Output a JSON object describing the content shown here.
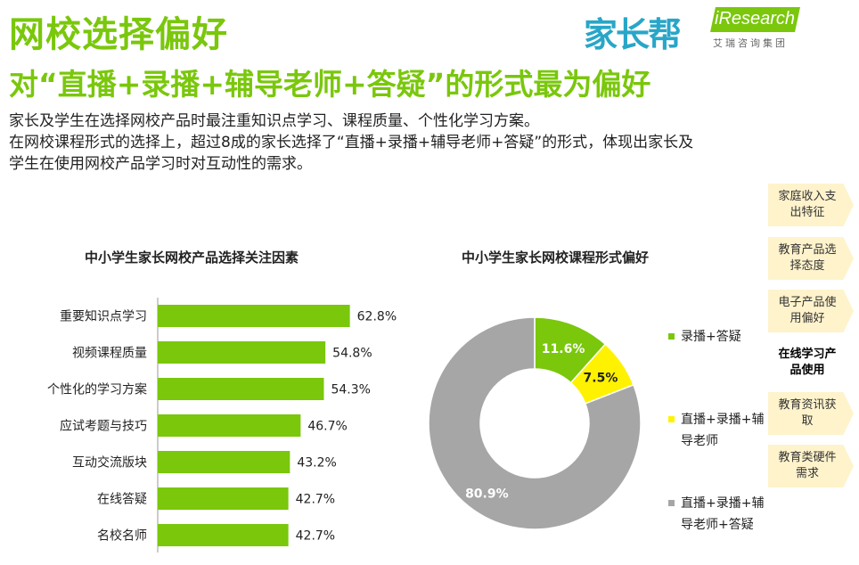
{
  "header": {
    "title": "网校选择偏好",
    "subtitle": "对“直播+录播+辅导老师+答疑”的形式最为偏好",
    "logo_brand": "家长帮",
    "logo_ir": "iResearch",
    "logo_ir_sub": "艾瑞咨询集团"
  },
  "description": [
    "家长及学生在选择网校产品时最注重知识点学习、课程质量、个性化学习方案。",
    "在网校课程形式的选择上，超过8成的家长选择了“直播+录播+辅导老师+答疑”的形式，体现出家长及",
    "学生在使用网校产品学习时对互动性的需求。"
  ],
  "nav": [
    {
      "label": "家庭收入支出特征",
      "active": false
    },
    {
      "label": "教育产品选择态度",
      "active": false
    },
    {
      "label": "电子产品使用偏好",
      "active": false
    },
    {
      "label": "在线学习产品使用",
      "active": true
    },
    {
      "label": "教育资讯获取",
      "active": false
    },
    {
      "label": "教育类硬件需求",
      "active": false
    }
  ],
  "colors": {
    "green": "#7ac70c",
    "yellow": "#fff200",
    "gray": "#a6a6a6",
    "nav_bg": "#fff3cc"
  },
  "chart_data": [
    {
      "type": "bar",
      "orientation": "horizontal",
      "title": "中小学生家长网校产品选择关注因素",
      "categories": [
        "重要知识点学习",
        "视频课程质量",
        "个性化的学习方案",
        "应试考题与技巧",
        "互动交流版块",
        "在线答疑",
        "名校名师"
      ],
      "values": [
        62.8,
        54.8,
        54.3,
        46.7,
        43.2,
        42.7,
        42.7
      ],
      "value_labels": [
        "62.8%",
        "54.8%",
        "54.3%",
        "46.7%",
        "43.2%",
        "42.7%",
        "42.7%"
      ],
      "xlim": [
        0,
        100
      ],
      "grid": false
    },
    {
      "type": "pie",
      "donut": true,
      "title": "中小学生家长网校课程形式偏好",
      "series": [
        {
          "name": "录播+答疑",
          "value": 11.6,
          "label": "11.6%",
          "color": "#7ac70c"
        },
        {
          "name": "直播+录播+辅导老师",
          "value": 7.5,
          "label": "7.5%",
          "color": "#fff200"
        },
        {
          "name": "直播+录播+辅导老师+答疑",
          "value": 80.9,
          "label": "80.9%",
          "color": "#a6a6a6"
        }
      ],
      "legend": [
        "录播+答疑",
        "直播+录播+辅导老师",
        "直播+录播+辅导老师+答疑"
      ],
      "legend_placement": "right"
    }
  ]
}
